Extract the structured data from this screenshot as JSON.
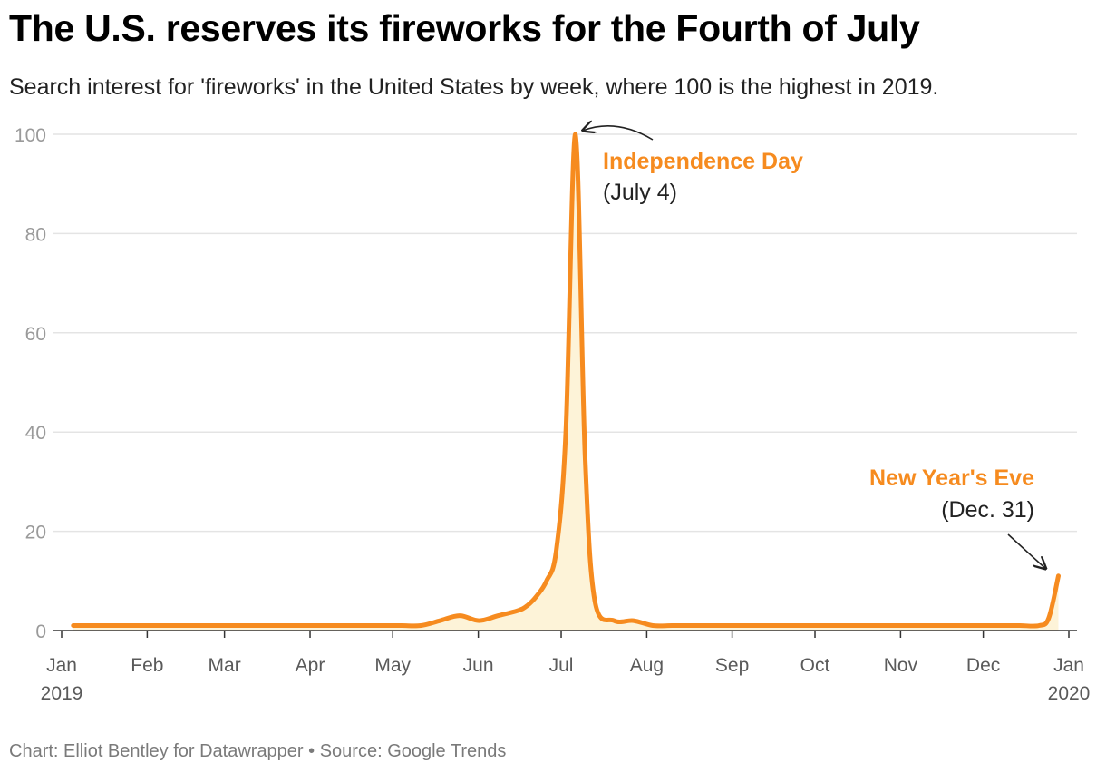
{
  "header": {
    "title": "The U.S. reserves its fireworks for the Fourth of July",
    "subtitle": "Search interest for 'fireworks' in the United States by week, where 100 is the highest in 2019."
  },
  "footer": {
    "credit": "Chart: Elliot Bentley for Datawrapper • Source: Google Trends"
  },
  "colors": {
    "line": "#f68b1f",
    "fill": "#fdf3d8",
    "annotation": "#f68b1f",
    "grid": "#e4e4e4"
  },
  "chart_data": {
    "type": "area",
    "title": "The U.S. reserves its fireworks for the Fourth of July",
    "xlabel": "",
    "ylabel": "",
    "ylim": [
      0,
      100
    ],
    "yticks": [
      "0",
      "20",
      "40",
      "60",
      "80",
      "100"
    ],
    "xticks": [
      {
        "label": "Jan",
        "sub": "2019",
        "week": 0
      },
      {
        "label": "Feb",
        "week": 4.43
      },
      {
        "label": "Mar",
        "week": 8.43
      },
      {
        "label": "Apr",
        "week": 12.86
      },
      {
        "label": "May",
        "week": 17.14
      },
      {
        "label": "Jun",
        "week": 21.57
      },
      {
        "label": "Jul",
        "week": 25.86
      },
      {
        "label": "Aug",
        "week": 30.29
      },
      {
        "label": "Sep",
        "week": 34.71
      },
      {
        "label": "Oct",
        "week": 39.0
      },
      {
        "label": "Nov",
        "week": 43.43
      },
      {
        "label": "Dec",
        "week": 47.71
      },
      {
        "label": "Jan",
        "sub": "2020",
        "week": 52.14
      }
    ],
    "series": [
      {
        "name": "fireworks",
        "x": [
          0.6,
          1.6,
          2.6,
          3.6,
          4.6,
          5.6,
          6.6,
          7.6,
          8.6,
          9.6,
          10.6,
          11.6,
          12.6,
          13.6,
          14.6,
          15.6,
          16.6,
          17.6,
          18.6,
          19.6,
          20.6,
          21.6,
          22.6,
          23.6,
          24.1,
          24.6,
          25.1,
          25.6,
          26.1,
          26.6,
          27.1,
          27.6,
          28.6,
          29.6,
          30.6,
          31.6,
          32.6,
          33.6,
          34.6,
          35.6,
          36.6,
          37.6,
          38.6,
          39.6,
          40.6,
          41.6,
          42.6,
          43.6,
          44.6,
          45.6,
          46.6,
          47.6,
          48.6,
          49.6,
          50.6,
          51.1,
          51.6
        ],
        "values": [
          1,
          1,
          1,
          1,
          1,
          1,
          1,
          1,
          1,
          1,
          1,
          1,
          1,
          1,
          1,
          1,
          1,
          1,
          1,
          2,
          3,
          2,
          3,
          4,
          5,
          7,
          10,
          16,
          40,
          100,
          35,
          6,
          2,
          2,
          1,
          1,
          1,
          1,
          1,
          1,
          1,
          1,
          1,
          1,
          1,
          1,
          1,
          1,
          1,
          1,
          1,
          1,
          1,
          1,
          1,
          2.5,
          11
        ]
      }
    ],
    "annotations": [
      {
        "title": "Independence Day",
        "subtitle": "(July 4)",
        "target_week": 26.6,
        "target_value": 100
      },
      {
        "title": "New Year's Eve",
        "subtitle": "(Dec. 31)",
        "target_week": 51.6,
        "target_value": 11
      }
    ]
  }
}
